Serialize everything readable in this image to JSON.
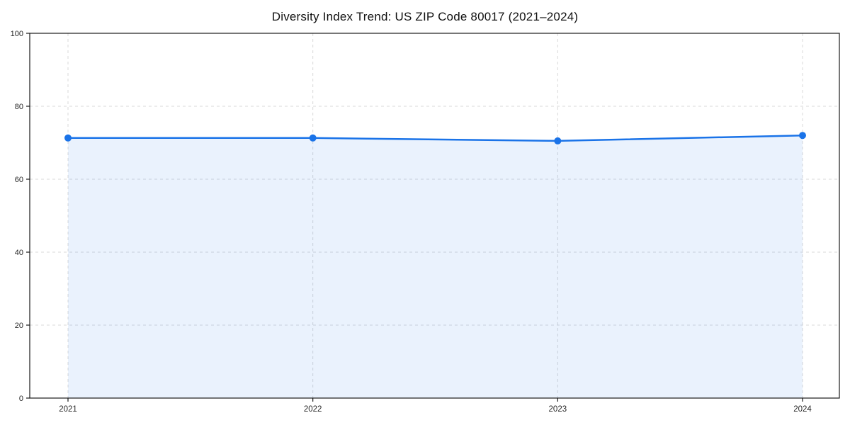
{
  "chart_data": {
    "type": "line",
    "title": "Diversity Index Trend: US ZIP Code 80017 (2021–2024)",
    "x": [
      "2021",
      "2022",
      "2023",
      "2024"
    ],
    "series": [
      {
        "name": "Diversity Index",
        "values": [
          71.3,
          71.3,
          70.5,
          72.0
        ]
      }
    ],
    "xlabel": "",
    "ylabel": "",
    "ylim": [
      0,
      100
    ],
    "yticks": [
      0,
      20,
      40,
      60,
      80,
      100
    ],
    "grid": true,
    "grid_style": "dashed",
    "legend": false,
    "colors": {
      "line": "#1a73e8",
      "marker": "#1a73e8",
      "fill": "#1a73e8",
      "fill_opacity": 0.09,
      "grid": "#d9d9d9",
      "spine": "#1a1a1a",
      "tick_label": "#262626",
      "background": "#ffffff"
    }
  }
}
